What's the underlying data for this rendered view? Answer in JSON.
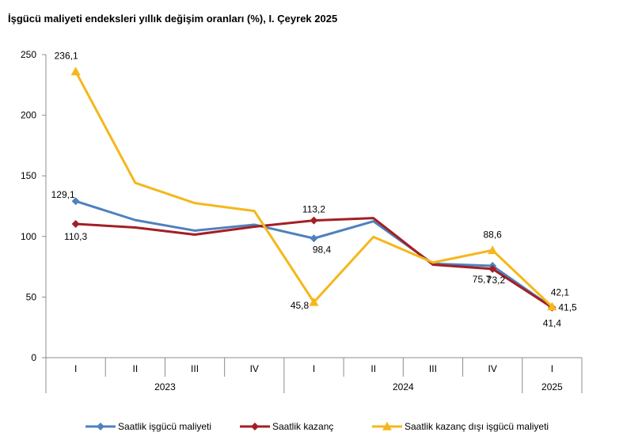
{
  "chart_data": {
    "type": "line",
    "title": "İşgücü maliyeti endeksleri yıllık değişim oranları (%), I. Çeyrek 2025",
    "ylim": [
      0,
      250
    ],
    "y_ticks": [
      "0",
      "50",
      "100",
      "150",
      "200",
      "250"
    ],
    "categories": [
      "I",
      "II",
      "III",
      "IV",
      "I",
      "II",
      "III",
      "IV",
      "I"
    ],
    "year_groups": [
      {
        "label": "2023",
        "count": 4
      },
      {
        "label": "2024",
        "count": 4
      },
      {
        "label": "2025",
        "count": 1
      }
    ],
    "grid": false,
    "legend_position": "bottom",
    "series": [
      {
        "name": "Saatlik işgücü maliyeti",
        "color": "#4f81bd",
        "marker": "diamond",
        "values": [
          129.1,
          113.5,
          104.8,
          109.7,
          98.4,
          112.5,
          77.5,
          75.7,
          41.5
        ],
        "labels": [
          "129,1",
          "",
          "",
          "",
          "98,4",
          "",
          "",
          "75,7",
          "41,5"
        ]
      },
      {
        "name": "Saatlik kazanç",
        "color": "#a31f24",
        "marker": "diamond",
        "values": [
          110.3,
          107.4,
          101.5,
          108.0,
          113.2,
          115.1,
          76.7,
          73.2,
          41.4
        ],
        "labels": [
          "110,3",
          "",
          "",
          "",
          "113,2",
          "",
          "",
          "73,2",
          "41,4"
        ]
      },
      {
        "name": "Saatlik kazanç dışı işgücü maliyeti",
        "color": "#f5b71a",
        "marker": "triangle",
        "values": [
          236.1,
          144.2,
          127.5,
          121.0,
          45.8,
          99.6,
          78.5,
          88.6,
          42.1
        ],
        "labels": [
          "236,1",
          "",
          "",
          "",
          "45,8",
          "",
          "",
          "88,6",
          "42,1"
        ]
      }
    ]
  }
}
